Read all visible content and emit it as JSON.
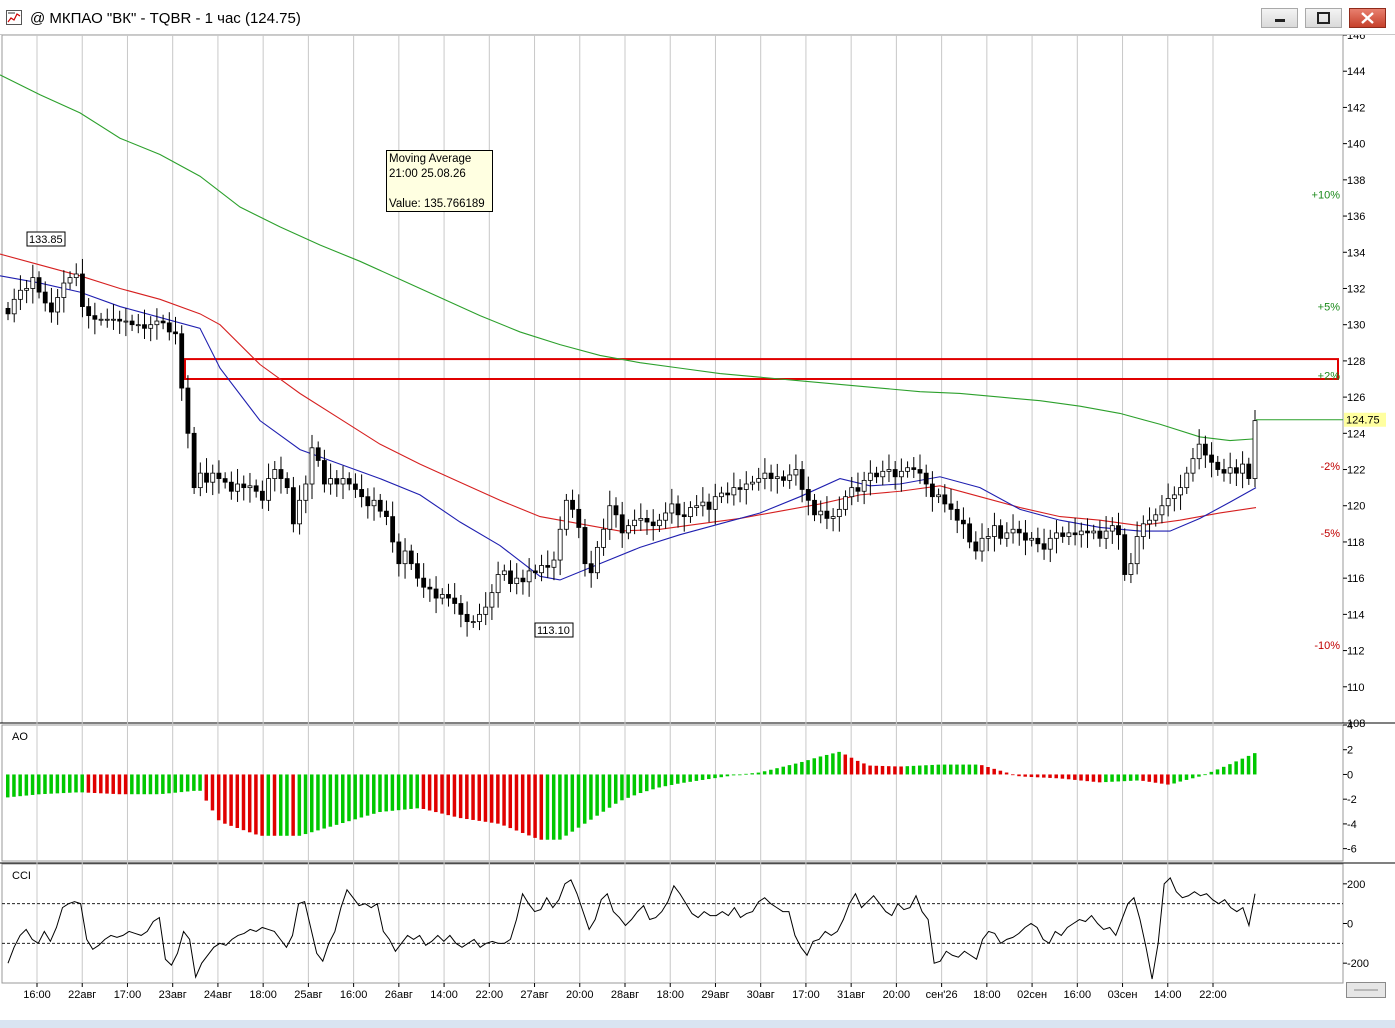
{
  "window": {
    "title": "@ МКПАО \"ВК\" - TQBR - 1 час (124.75)"
  },
  "tooltip": {
    "line1": "Moving Average",
    "line2": "21:00 25.08.26",
    "line3": "Value: 135.766189"
  },
  "colors": {
    "bull": "#00c800",
    "bear": "#e00000",
    "ma_long": "#2ca02c",
    "ma_mid": "#d62020",
    "ma_short": "#1f1fb0",
    "zone": "#e00000"
  },
  "chart_data": [
    {
      "type": "candlestick",
      "price_axis": {
        "ylim": [
          108,
          146
        ],
        "ticks": [
          108,
          110,
          112,
          114,
          116,
          118,
          120,
          122,
          124,
          126,
          128,
          130,
          132,
          134,
          136,
          138,
          140,
          142,
          144,
          146
        ]
      },
      "x_labels": [
        "16:00",
        "22авг",
        "17:00",
        "23авг",
        "24авг",
        "18:00",
        "25авг",
        "16:00",
        "26авг",
        "14:00",
        "22:00",
        "27авг",
        "20:00",
        "28авг",
        "18:00",
        "29авг",
        "30авг",
        "17:00",
        "31авг",
        "20:00",
        "сен'26",
        "18:00",
        "02сен",
        "16:00",
        "03сен",
        "14:00",
        "22:00"
      ],
      "last_price": "124.75",
      "high_label": "133.85",
      "low_label": "113.10",
      "percent_levels": [
        {
          "label": "+10%",
          "value": 137.2
        },
        {
          "label": "+5%",
          "value": 131.0
        },
        {
          "label": "+2%",
          "value": 127.2
        },
        {
          "label": "-2%",
          "value": 122.2
        },
        {
          "label": "-5%",
          "value": 118.5
        },
        {
          "label": "-10%",
          "value": 112.3
        }
      ],
      "zone": {
        "from": 127.0,
        "to": 128.1
      },
      "close": [
        130.6,
        131.4,
        131.9,
        132.0,
        132.6,
        131.8,
        131.2,
        130.7,
        131.5,
        132.3,
        132.6,
        132.8,
        131.0,
        130.5,
        130.3,
        130.3,
        130.3,
        130.3,
        130.2,
        130.2,
        130.0,
        130.0,
        129.8,
        130.0,
        130.2,
        130.1,
        129.6,
        129.5,
        126.5,
        124.0,
        121.0,
        121.8,
        121.3,
        121.8,
        121.5,
        121.3,
        120.8,
        121.2,
        121.0,
        121.1,
        120.8,
        120.3,
        121.5,
        122.0,
        121.5,
        121.0,
        119.0,
        120.3,
        121.2,
        123.2,
        122.5,
        121.2,
        121.5,
        121.2,
        121.5,
        121.2,
        120.9,
        120.5,
        120.0,
        120.3,
        119.7,
        119.4,
        118.0,
        116.8,
        117.5,
        116.8,
        116.0,
        115.5,
        115.4,
        114.9,
        115.1,
        114.9,
        114.6,
        114.0,
        113.6,
        113.6,
        114.0,
        114.4,
        115.2,
        116.2,
        116.4,
        115.7,
        116.0,
        115.8,
        116.4,
        116.3,
        116.7,
        116.6,
        117.0,
        118.7,
        120.3,
        119.8,
        118.8,
        116.8,
        116.3,
        117.7,
        118.7,
        120.0,
        119.5,
        118.5,
        118.9,
        119.2,
        119.3,
        119.1,
        118.9,
        119.2,
        119.6,
        120.1,
        119.5,
        119.4,
        119.9,
        120.0,
        120.2,
        119.8,
        120.5,
        120.7,
        120.6,
        121.0,
        120.9,
        121.2,
        121.3,
        121.5,
        121.8,
        121.5,
        121.6,
        121.4,
        121.7,
        122.0,
        120.9,
        120.3,
        119.5,
        119.7,
        119.3,
        119.4,
        119.8,
        120.5,
        121.0,
        120.8,
        121.4,
        121.8,
        121.6,
        121.9,
        122.0,
        121.6,
        121.9,
        122.1,
        122.0,
        121.8,
        121.2,
        120.5,
        120.6,
        120.1,
        119.8,
        119.2,
        119.0,
        118.0,
        117.5,
        118.2,
        118.3,
        118.9,
        118.2,
        118.5,
        118.7,
        118.5,
        118.1,
        118.2,
        117.9,
        117.6,
        118.2,
        118.5,
        118.3,
        118.5,
        118.4,
        118.6,
        118.5,
        118.6,
        118.2,
        118.6,
        118.9,
        118.4,
        116.2,
        116.8,
        118.3,
        119.0,
        119.2,
        119.5,
        120.0,
        120.4,
        120.6,
        121.0,
        121.8,
        122.6,
        123.4,
        122.8,
        122.4,
        122.0,
        121.8,
        122.1,
        121.8,
        122.3,
        121.5,
        124.7
      ],
      "ma_long": [
        [
          0,
          143.8
        ],
        [
          40,
          142.7
        ],
        [
          80,
          141.7
        ],
        [
          120,
          140.3
        ],
        [
          160,
          139.4
        ],
        [
          200,
          138.2
        ],
        [
          240,
          136.5
        ],
        [
          280,
          135.4
        ],
        [
          320,
          134.4
        ],
        [
          360,
          133.5
        ],
        [
          400,
          132.5
        ],
        [
          440,
          131.5
        ],
        [
          480,
          130.5
        ],
        [
          520,
          129.6
        ],
        [
          560,
          128.9
        ],
        [
          600,
          128.3
        ],
        [
          640,
          127.9
        ],
        [
          680,
          127.6
        ],
        [
          720,
          127.3
        ],
        [
          760,
          127.1
        ],
        [
          800,
          126.9
        ],
        [
          840,
          126.7
        ],
        [
          880,
          126.5
        ],
        [
          920,
          126.3
        ],
        [
          960,
          126.2
        ],
        [
          1000,
          126.0
        ],
        [
          1040,
          125.8
        ],
        [
          1080,
          125.5
        ],
        [
          1120,
          125.1
        ],
        [
          1160,
          124.5
        ],
        [
          1200,
          123.8
        ],
        [
          1230,
          123.6
        ],
        [
          1256,
          123.7
        ]
      ],
      "ma_mid": [
        [
          0,
          133.9
        ],
        [
          40,
          133.3
        ],
        [
          80,
          132.7
        ],
        [
          120,
          132.0
        ],
        [
          160,
          131.4
        ],
        [
          200,
          130.6
        ],
        [
          220,
          130.0
        ],
        [
          260,
          127.8
        ],
        [
          300,
          126.2
        ],
        [
          340,
          124.8
        ],
        [
          380,
          123.4
        ],
        [
          420,
          122.3
        ],
        [
          460,
          121.3
        ],
        [
          500,
          120.3
        ],
        [
          540,
          119.4
        ],
        [
          580,
          119.0
        ],
        [
          620,
          118.6
        ],
        [
          660,
          118.7
        ],
        [
          700,
          119.0
        ],
        [
          740,
          119.3
        ],
        [
          780,
          119.7
        ],
        [
          820,
          120.1
        ],
        [
          860,
          120.6
        ],
        [
          900,
          120.8
        ],
        [
          940,
          121.1
        ],
        [
          980,
          120.5
        ],
        [
          1020,
          119.9
        ],
        [
          1060,
          119.4
        ],
        [
          1100,
          119.2
        ],
        [
          1140,
          118.9
        ],
        [
          1180,
          119.2
        ],
        [
          1220,
          119.6
        ],
        [
          1256,
          119.9
        ]
      ],
      "ma_short": [
        [
          0,
          132.7
        ],
        [
          40,
          132.3
        ],
        [
          80,
          131.8
        ],
        [
          120,
          131.0
        ],
        [
          160,
          130.4
        ],
        [
          200,
          129.8
        ],
        [
          220,
          127.6
        ],
        [
          260,
          124.7
        ],
        [
          300,
          123.1
        ],
        [
          340,
          122.3
        ],
        [
          380,
          121.5
        ],
        [
          420,
          120.6
        ],
        [
          460,
          119.1
        ],
        [
          500,
          117.8
        ],
        [
          540,
          116.1
        ],
        [
          560,
          115.9
        ],
        [
          600,
          116.8
        ],
        [
          640,
          117.7
        ],
        [
          680,
          118.4
        ],
        [
          720,
          119.0
        ],
        [
          760,
          119.6
        ],
        [
          800,
          120.5
        ],
        [
          840,
          121.5
        ],
        [
          870,
          121.1
        ],
        [
          900,
          121.2
        ],
        [
          940,
          121.6
        ],
        [
          980,
          121.0
        ],
        [
          1020,
          119.8
        ],
        [
          1060,
          119.2
        ],
        [
          1100,
          118.8
        ],
        [
          1140,
          118.6
        ],
        [
          1170,
          118.6
        ],
        [
          1200,
          119.3
        ],
        [
          1230,
          120.2
        ],
        [
          1256,
          121.0
        ]
      ]
    },
    {
      "type": "bar",
      "name": "AO",
      "ylim": [
        -7,
        4
      ],
      "ticks": [
        4,
        2,
        0,
        -2,
        -4,
        -6
      ]
    },
    {
      "type": "line",
      "name": "CCI",
      "ylim": [
        -300,
        300
      ],
      "ticks": [
        200,
        0,
        -200
      ],
      "levels": [
        100,
        -100
      ],
      "values": [
        -200,
        -120,
        -60,
        -30,
        -80,
        -100,
        -40,
        -90,
        -20,
        80,
        100,
        110,
        100,
        -80,
        -130,
        -110,
        -80,
        -60,
        -70,
        -60,
        -40,
        -50,
        -60,
        -40,
        10,
        30,
        -180,
        -210,
        -150,
        -40,
        -80,
        -270,
        -200,
        -160,
        -120,
        -100,
        -110,
        -80,
        -60,
        -50,
        -30,
        -40,
        -20,
        -30,
        -40,
        -80,
        -120,
        -60,
        100,
        110,
        -20,
        -150,
        -190,
        -100,
        -40,
        80,
        170,
        130,
        90,
        100,
        80,
        100,
        -40,
        -80,
        -140,
        -100,
        -60,
        -80,
        -60,
        -110,
        -90,
        -60,
        -90,
        -60,
        -100,
        -120,
        -100,
        -80,
        -120,
        -100,
        -90,
        -100,
        -100,
        -80,
        20,
        150,
        100,
        60,
        70,
        130,
        80,
        120,
        200,
        220,
        150,
        60,
        -30,
        20,
        120,
        150,
        60,
        30,
        -10,
        20,
        60,
        90,
        20,
        30,
        60,
        110,
        190,
        150,
        100,
        50,
        30,
        60,
        40,
        40,
        60,
        40,
        80,
        30,
        50,
        60,
        110,
        130,
        100,
        80,
        60,
        60,
        -60,
        -120,
        -160,
        -90,
        -80,
        -40,
        -60,
        -40,
        20,
        100,
        150,
        80,
        110,
        140,
        100,
        60,
        40,
        100,
        70,
        80,
        140,
        60,
        20,
        -200,
        -190,
        -140,
        -160,
        -170,
        -140,
        -160,
        -180,
        -80,
        -40,
        -50,
        -100,
        -80,
        -70,
        -50,
        -20,
        0,
        -20,
        -80,
        -100,
        -40,
        -60,
        -20,
        0,
        20,
        10,
        40,
        0,
        -30,
        -20,
        -60,
        20,
        100,
        130,
        20,
        -120,
        -280,
        -100,
        200,
        230,
        160,
        130,
        140,
        160,
        140,
        150,
        120,
        100,
        120,
        80,
        60,
        80,
        -10,
        150
      ]
    }
  ]
}
